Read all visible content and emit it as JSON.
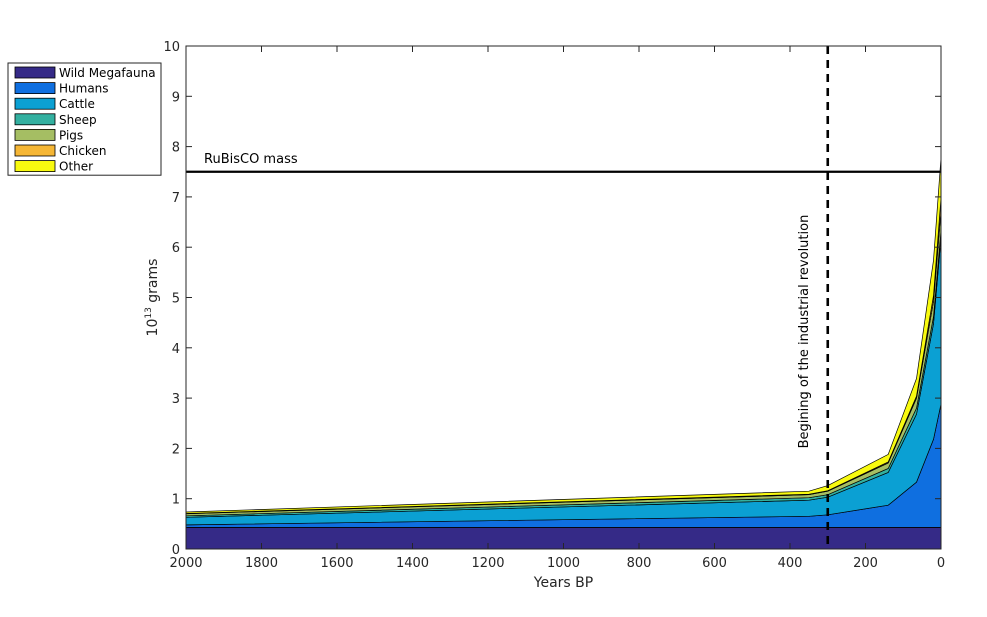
{
  "chart_data": {
    "type": "area",
    "stacked": true,
    "x": [
      2000,
      350,
      300,
      140,
      65,
      20,
      0
    ],
    "xlabel": "Years BP",
    "ylabel_base": "10",
    "ylabel_exp": "13",
    "ylabel_unit": " grams",
    "xlim": [
      2000,
      0
    ],
    "ylim": [
      0,
      10
    ],
    "x_reversed": true,
    "xticks": [
      2000,
      1800,
      1600,
      1400,
      1200,
      1000,
      800,
      600,
      400,
      200,
      0
    ],
    "yticks": [
      0,
      1,
      2,
      3,
      4,
      5,
      6,
      7,
      8,
      9,
      10
    ],
    "grid": false,
    "legend_position": "outside-top-left",
    "series": [
      {
        "name": "Wild Megafauna",
        "color": "#352a87",
        "values": [
          0.43,
          0.43,
          0.43,
          0.43,
          0.43,
          0.43,
          0.43
        ]
      },
      {
        "name": "Humans",
        "color": "#0f6fe0",
        "values": [
          0.05,
          0.22,
          0.25,
          0.44,
          0.9,
          1.75,
          2.45
        ]
      },
      {
        "name": "Cattle",
        "color": "#0ba0d3",
        "values": [
          0.15,
          0.32,
          0.35,
          0.65,
          1.35,
          2.3,
          3.3
        ]
      },
      {
        "name": "Sheep",
        "color": "#33b0a0",
        "values": [
          0.03,
          0.05,
          0.05,
          0.08,
          0.12,
          0.14,
          0.15
        ]
      },
      {
        "name": "Pigs",
        "color": "#a5be63",
        "values": [
          0.04,
          0.06,
          0.07,
          0.11,
          0.2,
          0.3,
          0.4
        ]
      },
      {
        "name": "Chicken",
        "color": "#f5b635",
        "values": [
          0.005,
          0.01,
          0.01,
          0.02,
          0.04,
          0.12,
          0.25
        ]
      },
      {
        "name": "Other",
        "color": "#f8fa10",
        "values": [
          0.03,
          0.06,
          0.1,
          0.15,
          0.35,
          0.7,
          0.8
        ]
      }
    ],
    "reference_line": {
      "y": 7.5,
      "label": "RuBisCO mass"
    },
    "vertical_marker": {
      "x": 300,
      "style": "dashed",
      "label": "Begining of the industrial revolution"
    }
  }
}
